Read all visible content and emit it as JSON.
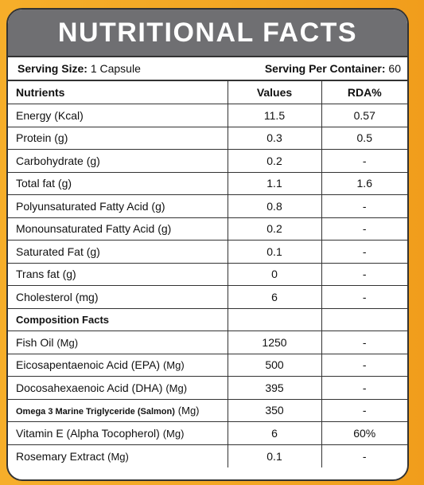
{
  "title": "NUTRITIONAL FACTS",
  "serving": {
    "size_label": "Serving Size:",
    "size_value": "1 Capsule",
    "per_container_label": "Serving Per Container:",
    "per_container_value": "60"
  },
  "columns": [
    "Nutrients",
    "Values",
    "RDA%"
  ],
  "rows": [
    {
      "name": "Energy (Kcal)",
      "value": "11.5",
      "rda": "0.57"
    },
    {
      "name": "Protein (g)",
      "value": "0.3",
      "rda": "0.5"
    },
    {
      "name": "Carbohydrate (g)",
      "value": "0.2",
      "rda": "-"
    },
    {
      "name": "Total fat (g)",
      "value": "1.1",
      "rda": "1.6"
    },
    {
      "name": "Polyunsaturated Fatty Acid (g)",
      "value": "0.8",
      "rda": "-"
    },
    {
      "name": "Monounsaturated Fatty Acid (g)",
      "value": "0.2",
      "rda": "-"
    },
    {
      "name": "Saturated Fat (g)",
      "value": "0.1",
      "rda": "-"
    },
    {
      "name": "Trans fat (g)",
      "value": "0",
      "rda": "-"
    },
    {
      "name": "Cholesterol (mg)",
      "value": "6",
      "rda": "-"
    }
  ],
  "section_title": "Composition Facts",
  "composition": [
    {
      "name": "Fish Oil",
      "unit": "(Mg)",
      "value": "1250",
      "rda": "-"
    },
    {
      "name": "Eicosapentaenoic Acid (EPA)",
      "unit": "(Mg)",
      "value": "500",
      "rda": "-"
    },
    {
      "name": "Docosahexaenoic Acid (DHA)",
      "unit": "(Mg)",
      "value": "395",
      "rda": "-"
    },
    {
      "name": "Omega 3 Marine Triglyceride (Salmon)",
      "unit": "(Mg)",
      "value": "350",
      "rda": "-"
    },
    {
      "name": "Vitamin E (Alpha Tocopherol)",
      "unit": "(Mg)",
      "value": "6",
      "rda": "60%"
    },
    {
      "name": "Rosemary Extract",
      "unit": "(Mg)",
      "value": "0.1",
      "rda": "-"
    }
  ]
}
